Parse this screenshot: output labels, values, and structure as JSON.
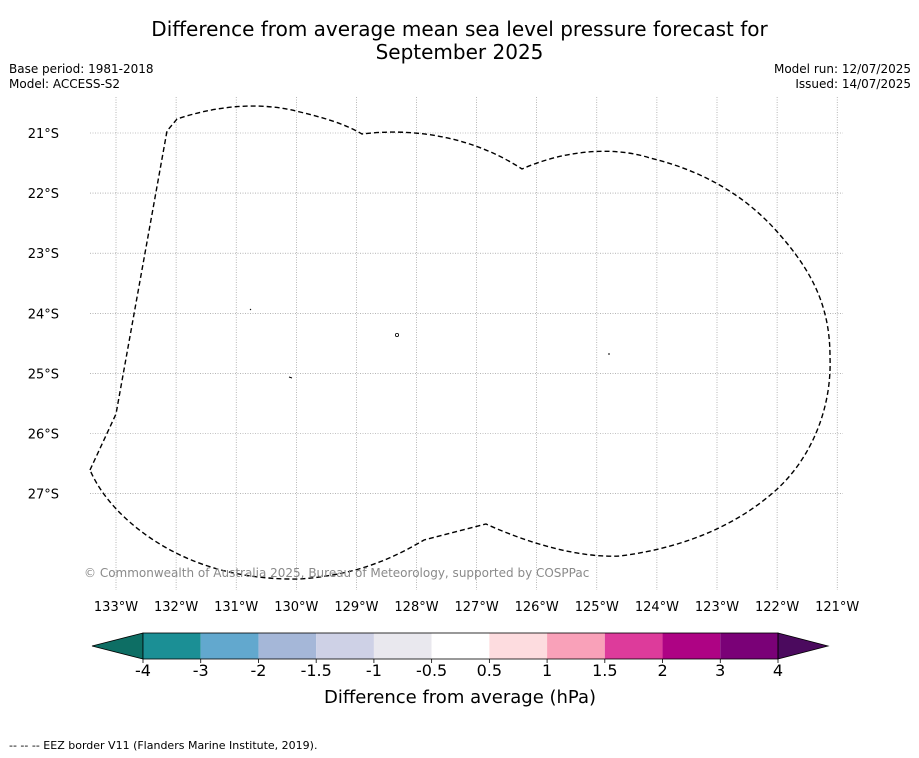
{
  "title": {
    "line1": "Difference from average mean sea level pressure forecast for",
    "line2": "September 2025"
  },
  "meta": {
    "base_period": "Base period: 1981-2018",
    "model": "Model: ACCESS-S2",
    "model_run": "Model run: 12/07/2025",
    "issued": "Issued: 14/07/2025"
  },
  "map": {
    "lon_labels": [
      "133°W",
      "132°W",
      "131°W",
      "130°W",
      "129°W",
      "128°W",
      "127°W",
      "126°W",
      "125°W",
      "124°W",
      "123°W",
      "122°W",
      "121°W"
    ],
    "lat_labels": [
      "21°S",
      "22°S",
      "23°S",
      "24°S",
      "25°S",
      "26°S",
      "27°S"
    ],
    "gridline_color": "#888888",
    "border_color": "#000000",
    "copyright": "© Commonwealth of Australia 2025, Bureau of Meteorology, supported by COSPPac"
  },
  "colorbar": {
    "label": "Difference from average (hPa)",
    "ticks": [
      "-4",
      "-3",
      "-2",
      "-1.5",
      "-1",
      "-0.5",
      "0.5",
      "1",
      "1.5",
      "2",
      "3",
      "4"
    ],
    "under_color": "#0d6e64",
    "over_color": "#4b0a5e",
    "colors": [
      "#1b8f95",
      "#62a8ce",
      "#a5b7d8",
      "#ced1e6",
      "#e9e8ee",
      "#ffffff",
      "#fddcdf",
      "#f9a1b9",
      "#dd3b9b",
      "#ae0384",
      "#7a0177"
    ]
  },
  "footer": {
    "legend": "--  --  -- EEZ border V11 (Flanders Marine Institute, 2019)."
  }
}
